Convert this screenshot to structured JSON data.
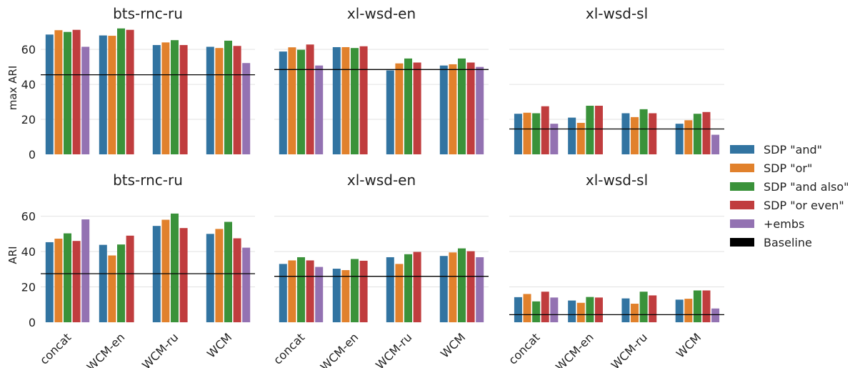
{
  "colors": {
    "sdp_and": "#3274a1",
    "sdp_or": "#e1812c",
    "sdp_and_also": "#3a923a",
    "sdp_or_even": "#c03d3e",
    "embs": "#9372b2",
    "baseline": "#000000"
  },
  "legend": [
    {
      "label": "SDP \"and\"",
      "color": "#3274a1"
    },
    {
      "label": "SDP \"or\"",
      "color": "#e1812c"
    },
    {
      "label": "SDP \"and also\"",
      "color": "#3a923a"
    },
    {
      "label": "SDP \"or even\"",
      "color": "#c03d3e"
    },
    {
      "label": "+embs",
      "color": "#9372b2"
    },
    {
      "label": "Baseline",
      "color": "#000000"
    }
  ],
  "chart_data": [
    {
      "type": "bar",
      "title": "bts-rnc-ru",
      "ylabel": "max ARI",
      "xlabel": "",
      "ylim": [
        0,
        76
      ],
      "yticks": [
        0,
        20,
        40,
        60
      ],
      "grid": true,
      "categories": [
        "concat",
        "WCM-en",
        "WCM-ru",
        "WCM"
      ],
      "series": [
        {
          "name": "SDP \"and\"",
          "values": [
            68.5,
            68.0,
            62.5,
            61.5
          ]
        },
        {
          "name": "SDP \"or\"",
          "values": [
            71.0,
            67.8,
            64.0,
            60.8
          ]
        },
        {
          "name": "SDP \"and also\"",
          "values": [
            70.0,
            72.0,
            65.3,
            65.0
          ]
        },
        {
          "name": "SDP \"or even\"",
          "values": [
            71.2,
            71.2,
            62.5,
            62.0
          ]
        },
        {
          "name": "+embs",
          "values": [
            61.5,
            null,
            null,
            52.2
          ]
        }
      ],
      "baseline": 45.5
    },
    {
      "type": "bar",
      "title": "xl-wsd-en",
      "ylabel": "",
      "xlabel": "",
      "ylim": [
        0,
        76
      ],
      "yticks": [
        0,
        20,
        40,
        60
      ],
      "grid": true,
      "categories": [
        "concat",
        "WCM-en",
        "WCM-ru",
        "WCM"
      ],
      "series": [
        {
          "name": "SDP \"and\"",
          "values": [
            58.8,
            61.3,
            48.0,
            50.8
          ]
        },
        {
          "name": "SDP \"or\"",
          "values": [
            61.2,
            61.3,
            52.0,
            51.5
          ]
        },
        {
          "name": "SDP \"and also\"",
          "values": [
            59.8,
            60.8,
            54.8,
            54.8
          ]
        },
        {
          "name": "SDP \"or even\"",
          "values": [
            62.8,
            61.8,
            52.5,
            52.5
          ]
        },
        {
          "name": "+embs",
          "values": [
            50.8,
            null,
            null,
            50.0
          ]
        }
      ],
      "baseline": 48.5
    },
    {
      "type": "bar",
      "title": "xl-wsd-sl",
      "ylabel": "",
      "xlabel": "",
      "ylim": [
        0,
        76
      ],
      "yticks": [
        0,
        20,
        40,
        60
      ],
      "grid": true,
      "categories": [
        "concat",
        "WCM-en",
        "WCM-ru",
        "WCM"
      ],
      "series": [
        {
          "name": "SDP \"and\"",
          "values": [
            23.2,
            21.0,
            23.5,
            17.5
          ]
        },
        {
          "name": "SDP \"or\"",
          "values": [
            23.8,
            18.0,
            21.3,
            19.5
          ]
        },
        {
          "name": "SDP \"and also\"",
          "values": [
            23.5,
            27.8,
            25.8,
            23.2
          ]
        },
        {
          "name": "SDP \"or even\"",
          "values": [
            27.5,
            27.8,
            23.5,
            24.2
          ]
        },
        {
          "name": "+embs",
          "values": [
            17.5,
            null,
            null,
            11.2
          ]
        }
      ],
      "baseline": 14.5
    },
    {
      "type": "bar",
      "title": "bts-rnc-ru",
      "ylabel": "ARI",
      "xlabel": "",
      "ylim": [
        0,
        76
      ],
      "yticks": [
        0,
        20,
        40,
        60
      ],
      "grid": true,
      "categories": [
        "concat",
        "WCM-en",
        "WCM-ru",
        "WCM"
      ],
      "series": [
        {
          "name": "SDP \"and\"",
          "values": [
            45.3,
            43.8,
            54.5,
            50.0
          ]
        },
        {
          "name": "SDP \"or\"",
          "values": [
            47.3,
            37.8,
            58.0,
            52.8
          ]
        },
        {
          "name": "SDP \"and also\"",
          "values": [
            50.3,
            44.0,
            61.5,
            56.8
          ]
        },
        {
          "name": "SDP \"or even\"",
          "values": [
            46.0,
            49.0,
            53.3,
            47.5
          ]
        },
        {
          "name": "+embs",
          "values": [
            58.2,
            null,
            null,
            42.2
          ]
        }
      ],
      "baseline": 27.5
    },
    {
      "type": "bar",
      "title": "xl-wsd-en",
      "ylabel": "",
      "xlabel": "",
      "ylim": [
        0,
        76
      ],
      "yticks": [
        0,
        20,
        40,
        60
      ],
      "grid": true,
      "categories": [
        "concat",
        "WCM-en",
        "WCM-ru",
        "WCM"
      ],
      "series": [
        {
          "name": "SDP \"and\"",
          "values": [
            33.0,
            30.3,
            36.8,
            37.5
          ]
        },
        {
          "name": "SDP \"or\"",
          "values": [
            35.0,
            29.5,
            33.0,
            39.5
          ]
        },
        {
          "name": "SDP \"and also\"",
          "values": [
            36.8,
            35.8,
            38.5,
            41.8
          ]
        },
        {
          "name": "SDP \"or even\"",
          "values": [
            35.0,
            34.8,
            39.8,
            40.2
          ]
        },
        {
          "name": "+embs",
          "values": [
            31.3,
            null,
            null,
            36.8
          ]
        }
      ],
      "baseline": 26.0
    },
    {
      "type": "bar",
      "title": "xl-wsd-sl",
      "ylabel": "",
      "xlabel": "",
      "ylim": [
        0,
        76
      ],
      "yticks": [
        0,
        20,
        40,
        60
      ],
      "grid": true,
      "categories": [
        "concat",
        "WCM-en",
        "WCM-ru",
        "WCM"
      ],
      "series": [
        {
          "name": "SDP \"and\"",
          "values": [
            14.2,
            12.3,
            13.5,
            12.8
          ]
        },
        {
          "name": "SDP \"or\"",
          "values": [
            16.0,
            11.0,
            10.5,
            13.3
          ]
        },
        {
          "name": "SDP \"and also\"",
          "values": [
            11.8,
            14.3,
            17.3,
            18.0
          ]
        },
        {
          "name": "SDP \"or even\"",
          "values": [
            17.3,
            14.0,
            15.2,
            18.0
          ]
        },
        {
          "name": "+embs",
          "values": [
            14.0,
            null,
            null,
            7.8
          ]
        }
      ],
      "baseline": 4.3
    }
  ]
}
